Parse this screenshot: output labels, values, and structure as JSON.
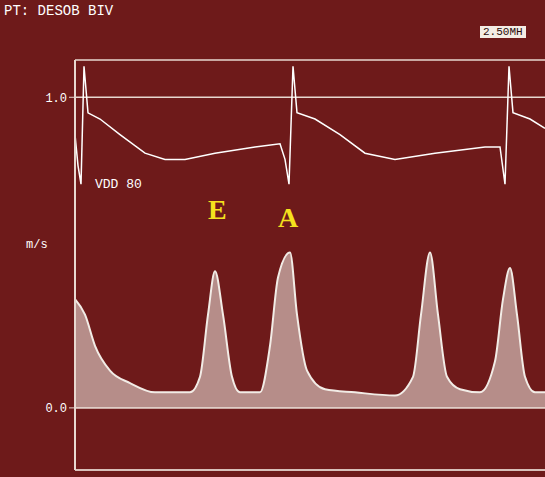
{
  "chart_data": {
    "type": "line",
    "title": "PT: DESOB BIV",
    "subtitle": "2.50MH",
    "y_label": "m/s",
    "annotations": [
      "VDD 80",
      "E",
      "A"
    ],
    "xlim": [
      0,
      470
    ],
    "ylim": [
      -0.2,
      1.12
    ],
    "yticks": [
      {
        "value": 1.0,
        "label": "1.0"
      },
      {
        "value": 0,
        "label": "0.0"
      }
    ],
    "tick_labels": "y",
    "grid": true,
    "series": [
      {
        "type": "area",
        "color": "#f2ece6",
        "x": [
          0,
          10,
          20,
          35,
          55,
          80,
          100,
          115,
          125,
          133,
          140,
          148,
          157,
          165,
          175,
          185,
          195,
          203,
          215,
          222,
          232,
          250,
          280,
          320,
          338,
          346,
          355,
          363,
          372,
          385,
          405,
          420,
          428,
          435,
          442,
          450,
          460,
          470
        ],
        "values": [
          0.35,
          0.3,
          0.2,
          0.12,
          0.08,
          0.05,
          0.05,
          0.05,
          0.1,
          0.3,
          0.44,
          0.3,
          0.1,
          0.05,
          0.05,
          0.05,
          0.2,
          0.42,
          0.5,
          0.3,
          0.12,
          0.06,
          0.05,
          0.04,
          0.1,
          0.3,
          0.5,
          0.3,
          0.1,
          0.06,
          0.05,
          0.15,
          0.35,
          0.45,
          0.3,
          0.1,
          0.05,
          0.05
        ]
      },
      {
        "type": "line",
        "color": "#ffffff",
        "x": [
          0,
          3,
          6,
          9,
          13,
          25,
          45,
          70,
          90,
          110,
          140,
          180,
          205,
          210,
          214,
          218,
          222,
          240,
          265,
          290,
          320,
          360,
          410,
          425,
          430,
          434,
          438,
          455,
          470
        ],
        "values": [
          0.88,
          0.78,
          0.72,
          1.1,
          0.95,
          0.93,
          0.88,
          0.82,
          0.8,
          0.8,
          0.82,
          0.84,
          0.85,
          0.8,
          0.72,
          1.1,
          0.95,
          0.93,
          0.88,
          0.82,
          0.8,
          0.82,
          0.84,
          0.84,
          0.72,
          1.1,
          0.95,
          0.93,
          0.9
        ]
      }
    ]
  }
}
